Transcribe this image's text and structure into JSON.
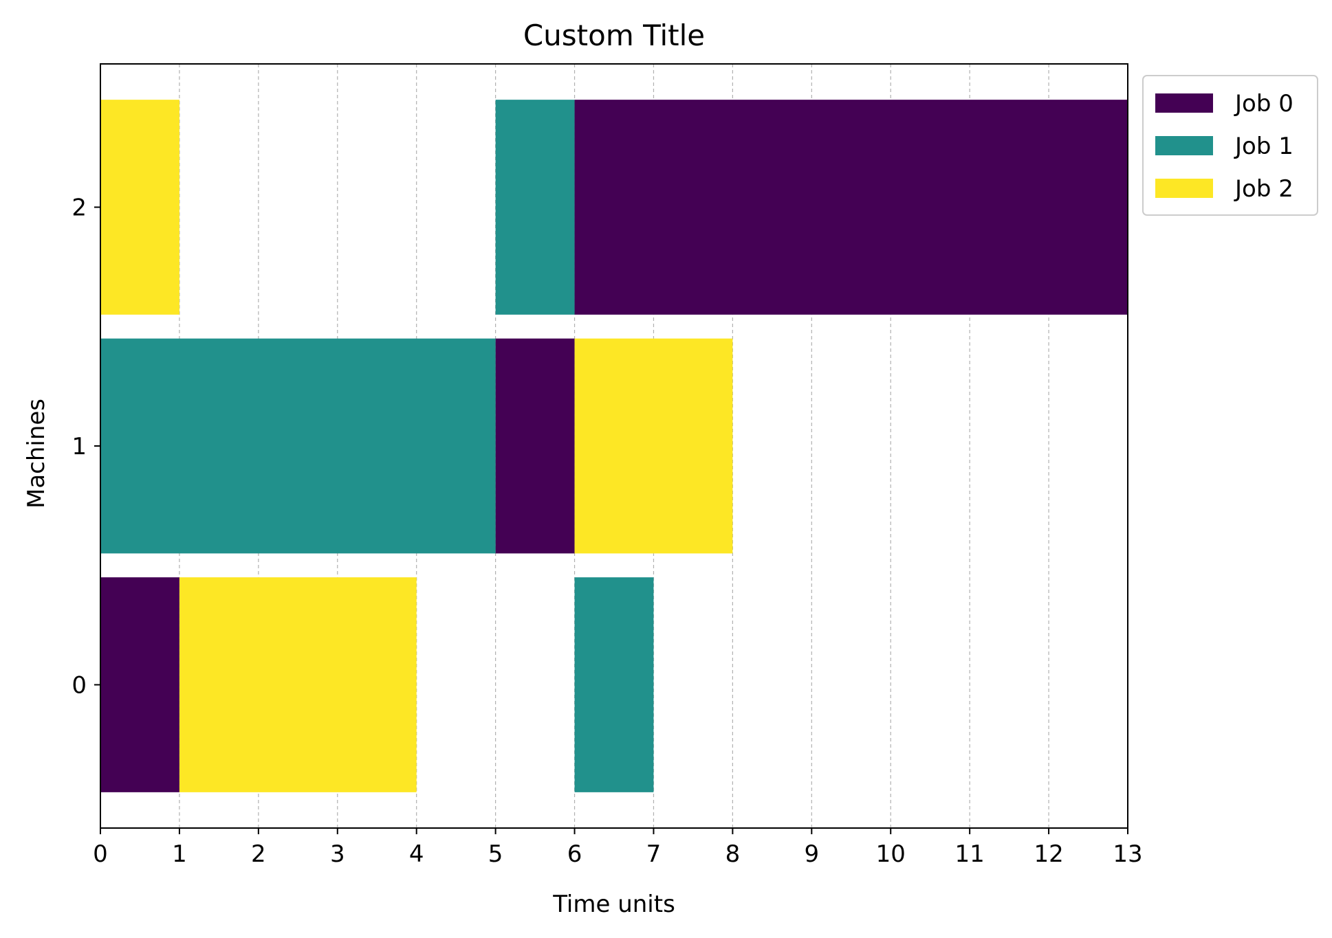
{
  "chart_data": {
    "type": "bar",
    "orientation": "horizontal",
    "title": "Custom Title",
    "xlabel": "Time units",
    "ylabel": "Machines",
    "xlim": [
      0,
      13
    ],
    "ylim": [
      -0.6,
      2.6
    ],
    "x_ticks": [
      0,
      1,
      2,
      3,
      4,
      5,
      6,
      7,
      8,
      9,
      10,
      11,
      12,
      13
    ],
    "y_ticks": [
      0,
      1,
      2
    ],
    "grid": "x, dashed, light gray",
    "legend_position": "outside top-right",
    "series": [
      {
        "name": "Job 0",
        "color": "#440154",
        "tasks": [
          {
            "machine": 0,
            "start": 0,
            "end": 1
          },
          {
            "machine": 1,
            "start": 5,
            "end": 6
          },
          {
            "machine": 2,
            "start": 6,
            "end": 13
          }
        ]
      },
      {
        "name": "Job 1",
        "color": "#21918c",
        "tasks": [
          {
            "machine": 0,
            "start": 6,
            "end": 7
          },
          {
            "machine": 1,
            "start": 0,
            "end": 5
          },
          {
            "machine": 2,
            "start": 5,
            "end": 6
          }
        ]
      },
      {
        "name": "Job 2",
        "color": "#fde725",
        "tasks": [
          {
            "machine": 0,
            "start": 1,
            "end": 4
          },
          {
            "machine": 1,
            "start": 6,
            "end": 8
          },
          {
            "machine": 2,
            "start": 0,
            "end": 1
          }
        ]
      }
    ]
  }
}
